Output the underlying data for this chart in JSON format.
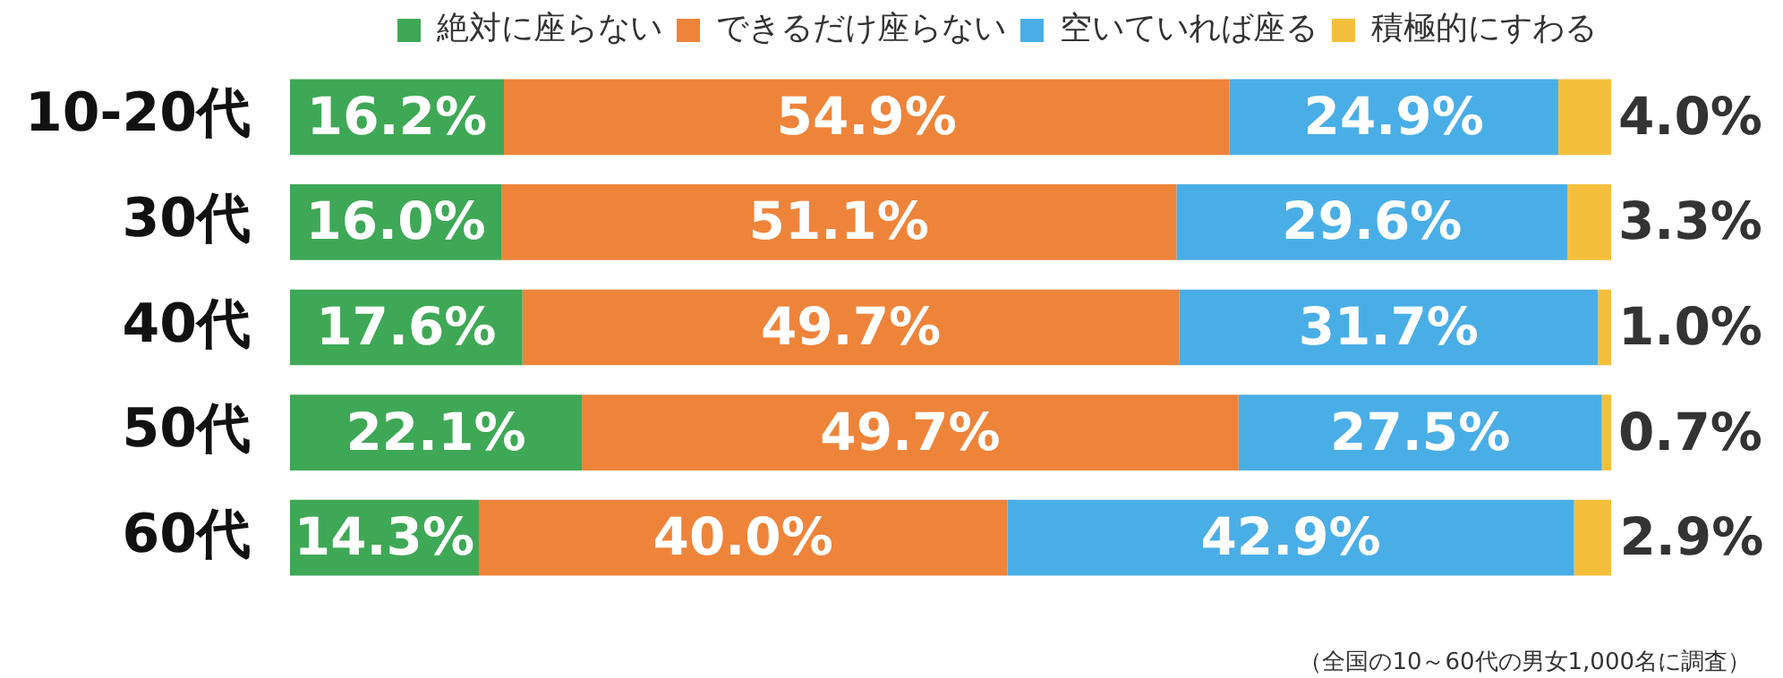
{
  "chart_data": {
    "type": "bar",
    "orientation": "horizontal",
    "stacked": true,
    "categories": [
      "10-20代",
      "30代",
      "40代",
      "50代",
      "60代"
    ],
    "series": [
      {
        "name": "絶対に座らない",
        "color": "#3fa856",
        "values": [
          16.2,
          16.0,
          17.6,
          22.1,
          14.3
        ],
        "value_labels": [
          "16.2%",
          "16.0%",
          "17.6%",
          "22.1%",
          "14.3%"
        ]
      },
      {
        "name": "できるだけ座らない",
        "color": "#ee843a",
        "values": [
          54.9,
          51.1,
          49.7,
          49.7,
          40.0
        ],
        "value_labels": [
          "54.9%",
          "51.1%",
          "49.7%",
          "49.7%",
          "40.0%"
        ]
      },
      {
        "name": "空いていれば座る",
        "color": "#4aaee6",
        "values": [
          24.9,
          29.6,
          31.7,
          27.5,
          42.9
        ],
        "value_labels": [
          "24.9%",
          "29.6%",
          "31.7%",
          "27.5%",
          "42.9%"
        ]
      },
      {
        "name": "積極的にすわる",
        "color": "#f4c03c",
        "values": [
          4.0,
          3.3,
          1.0,
          0.7,
          2.9
        ],
        "value_labels": [
          "4.0%",
          "3.3%",
          "1.0%",
          "0.7%",
          "2.9%"
        ]
      }
    ],
    "xlim": [
      0,
      100
    ],
    "tick_labels": "y",
    "legend": "top right",
    "annotations": [
      "（全国の10～60代の男女1,000名に調査）"
    ]
  }
}
